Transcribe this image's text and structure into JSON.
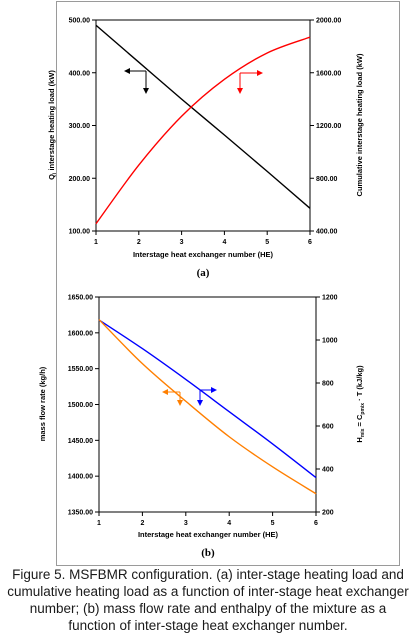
{
  "figure": {
    "caption": "Figure 5. MSFBMR configuration. (a) inter-stage heating load and cumulative heating load as a function of inter-stage heat exchanger number; (b) mass flow rate and enthalpy of the mixture as a function of inter-stage heat exchanger number."
  },
  "chart_data": [
    {
      "type": "line",
      "panel_label": "(a)",
      "xlabel": "Interstage heat exchanger number (HE)",
      "ylabel_left": "Qi interstage heating load (kW)",
      "ylabel_right": "Cumulative interstage heating load (kW)",
      "x_ticks": [
        "1",
        "2",
        "3",
        "4",
        "5",
        "6"
      ],
      "y_left_ticks": [
        "100.00",
        "200.00",
        "300.00",
        "400.00",
        "500.00"
      ],
      "y_right_ticks": [
        "400.00",
        "800.00",
        "1200.00",
        "1600.00",
        "2000.00"
      ],
      "xlim": [
        1,
        6
      ],
      "ylim_left": [
        100,
        500
      ],
      "ylim_right": [
        400,
        2000
      ],
      "grid": false,
      "series": [
        {
          "axis": "left",
          "color": "#000000",
          "x": [
            1,
            2,
            3,
            4,
            5,
            6
          ],
          "values": [
            490,
            420,
            350,
            282,
            213,
            143
          ]
        },
        {
          "axis": "right",
          "color": "#ff0000",
          "x": [
            1,
            2,
            3,
            4,
            5,
            6
          ],
          "values": [
            455,
            900,
            1270,
            1550,
            1750,
            1870
          ]
        }
      ]
    },
    {
      "type": "line",
      "panel_label": "(b)",
      "xlabel": "Interstage heat exchanger number (HE)",
      "ylabel_left": "mass flow rate (kg/h)",
      "ylabel_right": "Hmix = Cpmix · T (kJ/kg)",
      "x_ticks": [
        "1",
        "2",
        "3",
        "4",
        "5",
        "6"
      ],
      "y_left_ticks": [
        "1350.00",
        "1400.00",
        "1450.00",
        "1500.00",
        "1550.00",
        "1600.00",
        "1650.00"
      ],
      "y_right_ticks": [
        "200",
        "400",
        "600",
        "800",
        "1000",
        "1200"
      ],
      "xlim": [
        1,
        6
      ],
      "ylim_left": [
        1350,
        1650
      ],
      "ylim_right": [
        200,
        1200
      ],
      "grid": false,
      "series": [
        {
          "axis": "left",
          "color": "#0000ff",
          "x": [
            1,
            2,
            3,
            4,
            5,
            6
          ],
          "values": [
            1618,
            1578,
            1535,
            1490,
            1445,
            1398
          ]
        },
        {
          "axis": "right",
          "color": "#ff7f00",
          "x": [
            1,
            2,
            3,
            4,
            5,
            6
          ],
          "values": [
            1095,
            890,
            715,
            550,
            410,
            285
          ]
        }
      ]
    }
  ]
}
